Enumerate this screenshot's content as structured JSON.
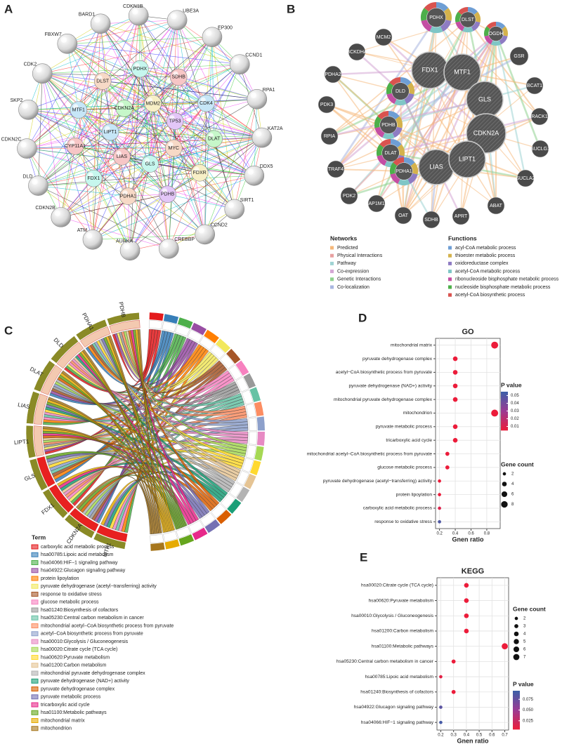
{
  "chart_data": [
    {
      "type": "network",
      "panel": "A",
      "outer_nodes": [
        "BARD1",
        "CDKN1B",
        "UBE3A",
        "EP300",
        "CCND1",
        "RPA1",
        "KAT2A",
        "DDX5",
        "SIRT1",
        "CCND2",
        "CREBBP",
        "AURKA",
        "ATM",
        "CDKN2B",
        "DLD",
        "CDKN2C",
        "SKP2",
        "CDK2",
        "FBXW7"
      ],
      "inner_nodes": [
        "DLST",
        "PDHX",
        "SDHB",
        "CDK4",
        "DLAT",
        "FDXR",
        "PDHB",
        "PDHA1",
        "FDX1",
        "CYP11A1",
        "MTF1",
        "CDKN2A",
        "MDM2",
        "TP53",
        "MYC",
        "GLS",
        "LIAS",
        "LIPT1"
      ]
    },
    {
      "type": "network",
      "panel": "B",
      "nodes": [
        "MCM2",
        "PDHX",
        "DLST",
        "OGDH",
        "BCKDHA",
        "GSR",
        "PDHA2",
        "FDX1",
        "MTF1",
        "BCAT1",
        "PDK3",
        "DLD",
        "PDHB",
        "GLS",
        "RACK1",
        "RPIA",
        "DLAT",
        "CDKN2A",
        "SUCLG1",
        "TRAF4",
        "PDHA1",
        "LIAS",
        "LIPT1",
        "SUCLA2",
        "PDK2",
        "AP1M1",
        "OAT",
        "SDHB",
        "APRT",
        "ABAT"
      ],
      "networks_title": "Networks",
      "networks": [
        {
          "name": "Predicted",
          "color": "#f5b87a"
        },
        {
          "name": "Physical Interactions",
          "color": "#e8a0a0"
        },
        {
          "name": "Pathway",
          "color": "#9fd3d3"
        },
        {
          "name": "Co-expression",
          "color": "#d4a6d4"
        },
        {
          "name": "Genetic Interactions",
          "color": "#8fd18f"
        },
        {
          "name": "Co-localization",
          "color": "#a9b7e0"
        }
      ],
      "functions_title": "Functions",
      "functions": [
        {
          "name": "acyl-CoA metabolic process",
          "color": "#6e9ed4"
        },
        {
          "name": "thioester metabolic process",
          "color": "#d4b24c"
        },
        {
          "name": "oxidoreductase complex",
          "color": "#8e7cc3"
        },
        {
          "name": "acetyl-CoA metabolic process",
          "color": "#7fc6c6"
        },
        {
          "name": "ribonucleoside bisphosphate metabolic process",
          "color": "#c44ea3"
        },
        {
          "name": "nucleoside bisphosphate metabolic process",
          "color": "#4daf4a"
        },
        {
          "name": "acetyl-CoA biosynthetic process",
          "color": "#d9534f"
        }
      ]
    },
    {
      "type": "chord",
      "panel": "C",
      "genes": [
        "PDHB",
        "PDHA1",
        "DLD",
        "DLAT",
        "LIAS",
        "LIPT1",
        "GLS",
        "FDX1",
        "CDKN2A",
        "MTF1"
      ],
      "gene_color": "#8a8a26",
      "legend_title": "Term",
      "terms": [
        "carboxylic acid metabolic process",
        "hsa00785:Lipoic acid metabolism",
        "hsa04066:HIF−1 signaling pathway",
        "hsa04922:Glucagon signaling pathway",
        "protein lipoylation",
        "pyruvate dehydrogenase (acetyl−transferring) activity",
        "response to oxidative stress",
        "glucose metabolic process",
        "hsa01240:Biosynthesis of cofactors",
        "hsa05230:Central carbon metabolism in cancer",
        "mitochondrial acetyl−CoA biosynthetic process from pyruvate",
        "acetyl−CoA biosynthetic process from pyruvate",
        "hsa00010:Glycolysis / Gluconeogenesis",
        "hsa00020:Citrate cycle (TCA cycle)",
        "hsa00620:Pyruvate metabolism",
        "hsa01200:Carbon metabolism",
        "mitochondrial pyruvate dehydrogenase complex",
        "pyruvate dehydrogenase (NAD+) activity",
        "pyruvate dehydrogenase complex",
        "pyruvate metabolic process",
        "tricarboxylic acid cycle",
        "hsa01100:Metabolic pathways",
        "mitochondrial matrix",
        "mitochondrion"
      ],
      "colors": [
        "#e41a1c",
        "#377eb8",
        "#4daf4a",
        "#984ea3",
        "#ff7f00",
        "#f2e85c",
        "#a65628",
        "#f781bf",
        "#999999",
        "#66c2a5",
        "#fc8d62",
        "#8da0cb",
        "#e78ac3",
        "#a6d854",
        "#ffd92f",
        "#e5c494",
        "#b3b3b3",
        "#1b9e77",
        "#d95f02",
        "#7570b3",
        "#e7298a",
        "#66a61e",
        "#e6ab02",
        "#a6761d"
      ]
    },
    {
      "type": "dot",
      "panel": "D",
      "title": "GO",
      "x_label": "Gnen ratio",
      "categories": [
        "mitochondrial matrix",
        "pyruvate dehydrogenase complex",
        "acetyl−CoA biosynthetic process from pyruvate",
        "pyruvate dehydrogenase (NAD+) activity",
        "mitochondrial pyruvate dehydrogenase complex",
        "mitochondrion",
        "pyruvate metabolic process",
        "tricarboxylic acid cycle",
        "mitochondrial acetyl−CoA biosynthetic process from pyruvate",
        "glucose metabolic process",
        "pyruvate dehydrogenase (acetyl−transferring) activity",
        "protein lipoylation",
        "carboxylic acid metabolic process",
        "response to oxidative stress"
      ],
      "values": [
        0.9,
        0.4,
        0.4,
        0.4,
        0.4,
        0.9,
        0.4,
        0.4,
        0.3,
        0.3,
        0.2,
        0.2,
        0.2,
        0.2
      ],
      "sizes": [
        9,
        4,
        4,
        4,
        4,
        9,
        4,
        4,
        3,
        3,
        2,
        2,
        2,
        2
      ],
      "p_values": [
        0.001,
        0.001,
        0.001,
        0.001,
        0.001,
        0.003,
        0.001,
        0.002,
        0.001,
        0.005,
        0.002,
        0.003,
        0.01,
        0.05
      ],
      "xlim": [
        0.15,
        0.97
      ],
      "xticks": [
        0.2,
        0.4,
        0.6,
        0.8
      ],
      "p_title": "P value",
      "plim": [
        0.005,
        0.055
      ],
      "p_ticks": [
        0.05,
        0.04,
        0.03,
        0.02,
        0.01
      ],
      "size_title": "Gene count",
      "size_ticks": [
        2,
        4,
        6,
        8
      ],
      "low_color": "#ec1c3a",
      "mid_color": "#9a3a93",
      "high_color": "#3b5fa8"
    },
    {
      "type": "dot",
      "panel": "E",
      "title": "KEGG",
      "x_label": "Gnen ratio",
      "categories": [
        "hsa00020:Citrate cycle (TCA cycle)",
        "hsa00620:Pyruvate metabolism",
        "hsa00010:Glycolysis / Gluconeogenesis",
        "hsa01200:Carbon metabolism",
        "hsa01100:Metabolic pathways",
        "hsa05230:Central carbon metabolism in cancer",
        "hsa00785:Lipoic acid metabolism",
        "hsa01240:Biosynthesis of cofactors",
        "hsa04922:Glucagon signaling pathway",
        "hsa04066:HIF−1 signaling pathway"
      ],
      "values": [
        0.4,
        0.4,
        0.4,
        0.4,
        0.7,
        0.3,
        0.2,
        0.3,
        0.2,
        0.2
      ],
      "sizes": [
        4,
        4,
        4,
        4,
        7,
        3,
        2,
        3,
        2,
        2
      ],
      "p_values": [
        0.001,
        0.001,
        0.001,
        0.001,
        0.002,
        0.003,
        0.01,
        0.005,
        0.08,
        0.09
      ],
      "xlim": [
        0.17,
        0.73
      ],
      "xticks": [
        0.2,
        0.3,
        0.4,
        0.5,
        0.6,
        0.7
      ],
      "p_title": "P value",
      "plim": [
        0.005,
        0.095
      ],
      "p_ticks": [
        {
          "value": 0.075,
          "label": "0.075"
        },
        {
          "value": 0.05,
          "label": "0.050"
        },
        {
          "value": 0.025,
          "label": "0.025"
        }
      ],
      "size_title": "Gene count",
      "size_ticks": [
        2,
        3,
        4,
        5,
        6,
        7
      ],
      "low_color": "#ec1c3a",
      "mid_color": "#9a3a93",
      "high_color": "#3b5fa8"
    }
  ]
}
